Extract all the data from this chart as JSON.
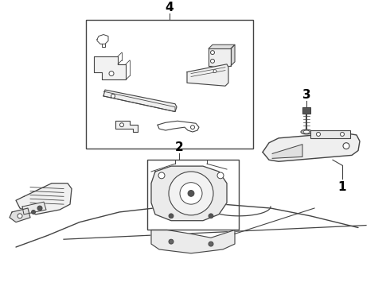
{
  "background_color": "#ffffff",
  "line_color": "#444444",
  "label_color": "#000000",
  "fig_width": 4.9,
  "fig_height": 3.6,
  "dpi": 100
}
